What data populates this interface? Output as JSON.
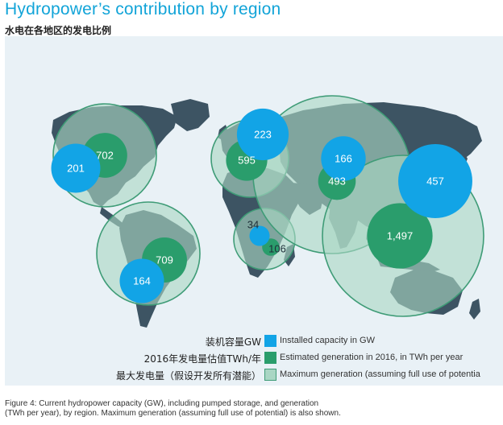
{
  "title": "Hydropower’s contribution by region",
  "subtitle": "水电在各地区的发电比例",
  "caption_line1": "Figure 4: Current hydropower capacity (GW), including pumped storage, and generation",
  "caption_line2": "(TWh per year), by region. Maximum generation (assuming full use of potential) is also shown.",
  "colors": {
    "installed": "#12a4e6",
    "generation": "#2a9d6c",
    "maximum": "#a9d6c4",
    "maximum_stroke": "#3f9c77",
    "land": "#3d5463",
    "ocean": "#e9f1f6"
  },
  "legend": [
    {
      "key": "installed",
      "cn": "装机容量GW",
      "en": "Installed capacity in GW"
    },
    {
      "key": "generation",
      "cn": "2016年发电量估值TWh/年",
      "en": "Estimated generation in 2016, in TWh per year"
    },
    {
      "key": "maximum",
      "cn": "最大发电量（假设开发所有潜能）",
      "en": "Maximum generation (assuming full use of potentia"
    }
  ],
  "chart_data": {
    "type": "bubble-map",
    "series": [
      {
        "key": "installed",
        "name": "Installed capacity in GW"
      },
      {
        "key": "generation",
        "name": "Estimated generation in 2016, in TWh per year"
      },
      {
        "key": "maximum",
        "name": "Maximum generation (assuming full use of potential)"
      }
    ],
    "regions": [
      {
        "id": "north-america",
        "installed": 201,
        "generation": 702,
        "maximum_level": 1.0
      },
      {
        "id": "south-america",
        "installed": 164,
        "generation": 709,
        "maximum_level": 1.0
      },
      {
        "id": "europe",
        "installed": 223,
        "generation": 595,
        "maximum_level": 1.0
      },
      {
        "id": "africa",
        "installed": 34,
        "generation": 106,
        "maximum_level": 1.0
      },
      {
        "id": "eurasia",
        "installed": 166,
        "generation": 493,
        "maximum_level": 1.0
      },
      {
        "id": "east-asia-pacific",
        "installed": 457,
        "generation": 1497,
        "maximum_level": 1.0
      }
    ]
  }
}
